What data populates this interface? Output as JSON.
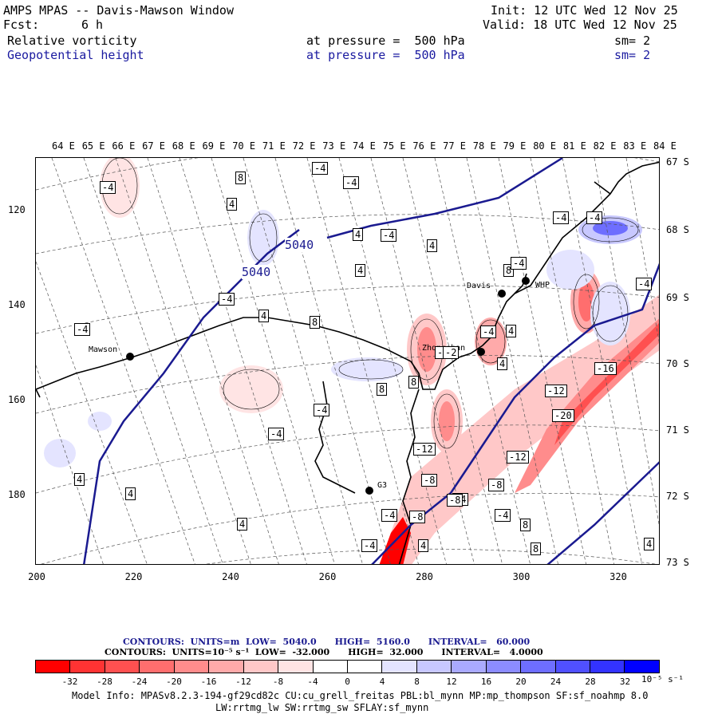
{
  "header": {
    "title": "AMPS MPAS -- Davis-Mawson Window",
    "forecast_label": "Fcst:",
    "forecast_value": "6 h",
    "init": "Init: 12 UTC Wed 12 Nov 25",
    "valid": "Valid: 18 UTC Wed 12 Nov 25",
    "field1_name": "Relative vorticity",
    "field1_level": "at pressure =  500 hPa",
    "field1_sm": "sm= 2",
    "field2_name": "Geopotential height",
    "field2_level": "at pressure =  500 hPa",
    "field2_sm": "sm= 2"
  },
  "map": {
    "lon_labels": [
      "64 E",
      "65 E",
      "66 E",
      "67 E",
      "68 E",
      "69 E",
      "70 E",
      "71 E",
      "72 E",
      "73 E",
      "74 E",
      "75 E",
      "76 E",
      "77 E",
      "78 E",
      "79 E",
      "80 E",
      "81 E",
      "82 E",
      "83 E",
      "84 E"
    ],
    "lat_labels": [
      "67 S",
      "68 S",
      "69 S",
      "70 S",
      "71 S",
      "72 S",
      "73 S"
    ],
    "x_ticks": [
      "200",
      "220",
      "240",
      "260",
      "280",
      "300",
      "320"
    ],
    "y_ticks": [
      "120",
      "140",
      "160",
      "180"
    ],
    "stations": [
      {
        "name": "Mawson"
      },
      {
        "name": "Zhongshan"
      },
      {
        "name": "Davis"
      },
      {
        "name": "WHP"
      },
      {
        "name": "G3"
      }
    ],
    "height_contour_labels": [
      "5040",
      "5040"
    ],
    "vorticity_labels": [
      "-4",
      "8",
      "4",
      "-4",
      "-4",
      "4",
      "-4",
      "4",
      "8",
      "4",
      "-4",
      "-4",
      "4",
      "8",
      "-4",
      "4",
      "-4",
      "8",
      "-2",
      "8",
      "-2",
      "4",
      "-4",
      "-4",
      "-12",
      "-16",
      "-12",
      "-20",
      "-8",
      "-8",
      "-12",
      "-4",
      "-8",
      "8",
      "-4",
      "-4",
      "4",
      "4",
      "4",
      "4",
      "8",
      "-8",
      "-4",
      "-4",
      "-4",
      "-4",
      "4"
    ]
  },
  "contours": {
    "line1_label": "CONTOURS:  UNITS=m  LOW=  5040.0      HIGH=  5160.0      INTERVAL=   60.000",
    "line2_label": "CONTOURS:  UNITS=10⁻⁵ s⁻¹  LOW=  -32.000      HIGH=  32.000      INTERVAL=   4.0000"
  },
  "colorbar": {
    "ticks": [
      "-32",
      "-28",
      "-24",
      "-20",
      "-16",
      "-12",
      "-8",
      "-4",
      "0",
      "4",
      "8",
      "12",
      "16",
      "20",
      "24",
      "28",
      "32"
    ],
    "units": "10⁻⁵ s⁻¹",
    "colors": [
      "#ff0000",
      "#ff3333",
      "#ff5050",
      "#ff6e6e",
      "#ff8c8c",
      "#ffaaaa",
      "#ffc8c8",
      "#ffe4e4",
      "#ffffff",
      "#ffffff",
      "#e4e4ff",
      "#c8c8ff",
      "#aaaaff",
      "#8c8cff",
      "#6e6eff",
      "#5050ff",
      "#3333ff",
      "#0000ff"
    ]
  },
  "footer": {
    "model_info": "Model Info: MPASv8.2.3-194-gf29cd82c CU:cu_grell_freitas PBL:bl_mynn MP:mp_thompson SF:sf_noahmp 8.0",
    "model_info2": "LW:rrtmg_lw SW:rrtmg_sw SFLAY:sf_mynn"
  }
}
